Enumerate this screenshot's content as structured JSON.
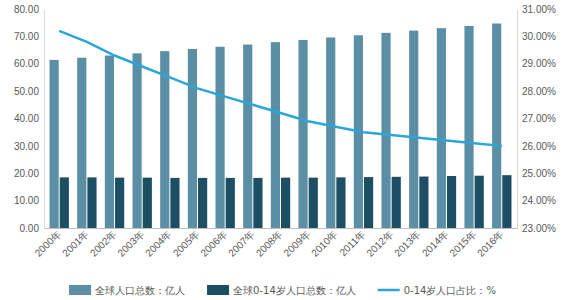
{
  "chart_data": {
    "type": "bar",
    "categories": [
      "2000年",
      "2001年",
      "2002年",
      "2003年",
      "2004年",
      "2005年",
      "2006年",
      "2007年",
      "2008年",
      "2009年",
      "2010年",
      "2011年",
      "2012年",
      "2013年",
      "2014年",
      "2015年",
      "2016年"
    ],
    "series": [
      {
        "name": "全球人口总数：亿人",
        "type": "bar",
        "color": "#5b8fa6",
        "values": [
          61.4,
          62.2,
          63.0,
          63.8,
          64.6,
          65.4,
          66.2,
          67.0,
          67.9,
          68.7,
          69.6,
          70.4,
          71.3,
          72.1,
          73.0,
          73.8,
          74.7
        ]
      },
      {
        "name": "全球0-14岁人口总数：亿人",
        "type": "bar",
        "color": "#1c4f63",
        "values": [
          18.5,
          18.5,
          18.4,
          18.4,
          18.3,
          18.3,
          18.3,
          18.3,
          18.4,
          18.4,
          18.5,
          18.6,
          18.7,
          18.8,
          19.0,
          19.1,
          19.3
        ]
      },
      {
        "name": "0-14岁人口占比：%",
        "type": "line",
        "axis": "y2",
        "color": "#2ca6d9",
        "values": [
          30.2,
          29.8,
          29.3,
          28.9,
          28.5,
          28.1,
          27.8,
          27.5,
          27.2,
          26.9,
          26.7,
          26.5,
          26.4,
          26.3,
          26.2,
          26.1,
          26.0
        ]
      }
    ],
    "ylim": [
      0,
      80
    ],
    "yticks": [
      {
        "value": 0,
        "label": "0.00"
      },
      {
        "value": 10,
        "label": "10.00"
      },
      {
        "value": 20,
        "label": "20.00"
      },
      {
        "value": 30,
        "label": "30.00"
      },
      {
        "value": 40,
        "label": "40.00"
      },
      {
        "value": 50,
        "label": "50.00"
      },
      {
        "value": 60,
        "label": "60.00"
      },
      {
        "value": 70,
        "label": "70.00"
      },
      {
        "value": 80,
        "label": "80.00"
      }
    ],
    "y2lim": [
      23,
      31
    ],
    "y2ticks": [
      {
        "value": 23,
        "label": "23.00%"
      },
      {
        "value": 24,
        "label": "24.00%"
      },
      {
        "value": 25,
        "label": "25.00%"
      },
      {
        "value": 26,
        "label": "26.00%"
      },
      {
        "value": 27,
        "label": "27.00%"
      },
      {
        "value": 28,
        "label": "28.00%"
      },
      {
        "value": 29,
        "label": "29.00%"
      },
      {
        "value": 30,
        "label": "30.00%"
      },
      {
        "value": 31,
        "label": "31.00%"
      }
    ],
    "legend": "bottom",
    "grid": false
  }
}
